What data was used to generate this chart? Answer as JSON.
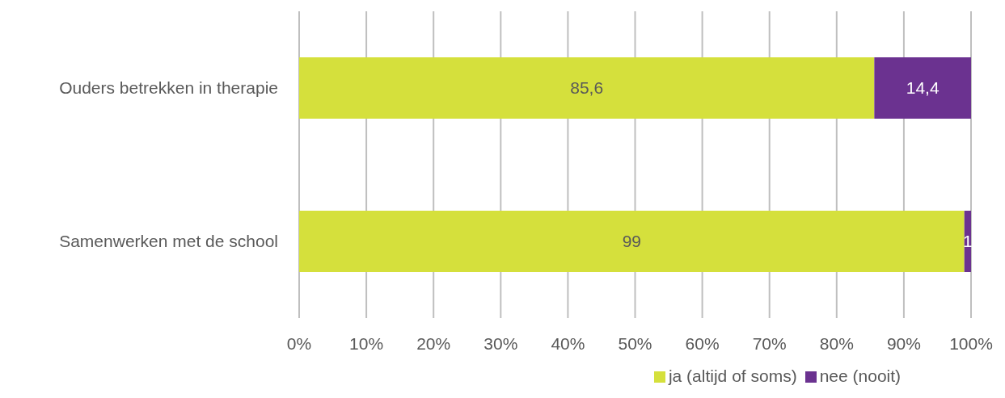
{
  "chart_data": {
    "type": "bar",
    "orientation": "horizontal",
    "stacked": true,
    "categories": [
      "Ouders betrekken in therapie",
      "Samenwerken met de school"
    ],
    "series": [
      {
        "name": "ja (altijd of soms)",
        "color": "#d5e03c",
        "values": [
          85.6,
          99
        ],
        "value_labels": [
          "85,6",
          "99"
        ]
      },
      {
        "name": "nee (nooit)",
        "color": "#6b3290",
        "values": [
          14.4,
          1
        ],
        "value_labels": [
          "14,4",
          "1"
        ]
      }
    ],
    "xlim": [
      0,
      100
    ],
    "xticks": [
      {
        "value": 0,
        "label": "0%"
      },
      {
        "value": 10,
        "label": "10%"
      },
      {
        "value": 20,
        "label": "20%"
      },
      {
        "value": 30,
        "label": "30%"
      },
      {
        "value": 40,
        "label": "40%"
      },
      {
        "value": 50,
        "label": "50%"
      },
      {
        "value": 60,
        "label": "60%"
      },
      {
        "value": 70,
        "label": "70%"
      },
      {
        "value": 80,
        "label": "80%"
      },
      {
        "value": 90,
        "label": "90%"
      },
      {
        "value": 100,
        "label": "100%"
      }
    ],
    "grid": "x",
    "legend": "bottom"
  }
}
